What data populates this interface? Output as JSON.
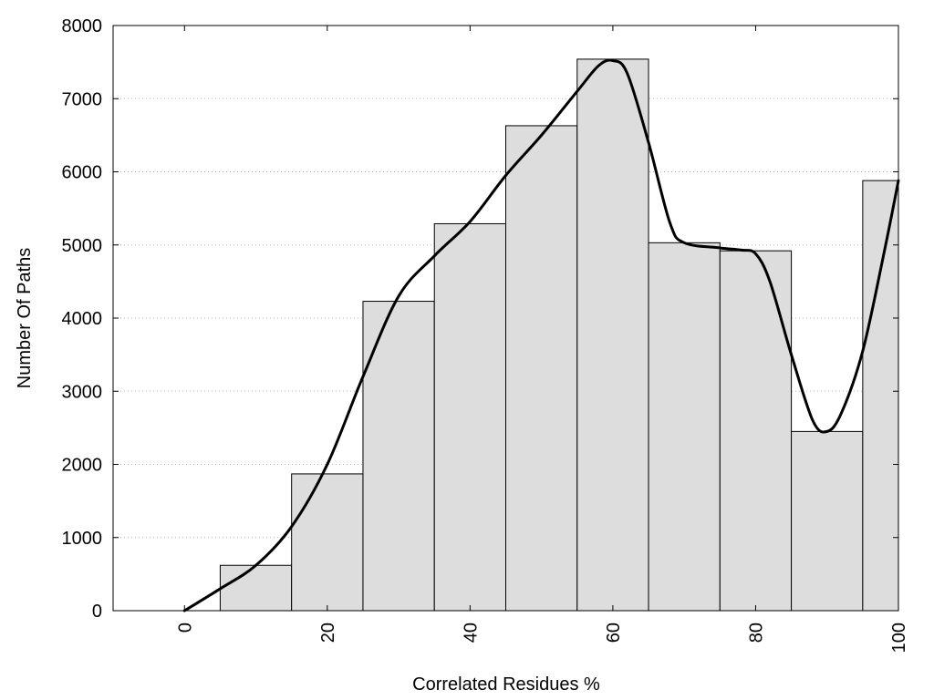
{
  "chart_data": {
    "type": "bar",
    "title": "",
    "xlabel": "Correlated Residues %",
    "ylabel": "Number Of Paths",
    "xlim": [
      -10,
      100
    ],
    "ylim": [
      0,
      8000
    ],
    "x_ticks": [
      0,
      20,
      40,
      60,
      80,
      100
    ],
    "y_ticks": [
      0,
      1000,
      2000,
      3000,
      4000,
      5000,
      6000,
      7000,
      8000
    ],
    "grid": "horizontal dotted",
    "bar_width": 10,
    "x": [
      0,
      10,
      20,
      30,
      40,
      50,
      60,
      70,
      80,
      90,
      100
    ],
    "values": [
      0,
      620,
      1870,
      4230,
      5290,
      6630,
      7540,
      5030,
      4920,
      2450,
      5880
    ],
    "curve": {
      "x": [
        0,
        5,
        10,
        15,
        20,
        25,
        30,
        35,
        40,
        45,
        50,
        55,
        58,
        60,
        62,
        65,
        68,
        70,
        75,
        78,
        80,
        82,
        85,
        88,
        90,
        92,
        95,
        98,
        100
      ],
      "y": [
        0,
        300,
        620,
        1150,
        2000,
        3200,
        4300,
        4850,
        5320,
        5950,
        6500,
        7100,
        7450,
        7520,
        7350,
        6400,
        5300,
        5030,
        4960,
        4930,
        4880,
        4500,
        3500,
        2600,
        2450,
        2700,
        3550,
        4900,
        5880
      ]
    },
    "colors": {
      "bar_fill": "#dddddd",
      "bar_stroke": "#000000",
      "curve": "#000000",
      "grid": "#bbbbbb"
    }
  }
}
